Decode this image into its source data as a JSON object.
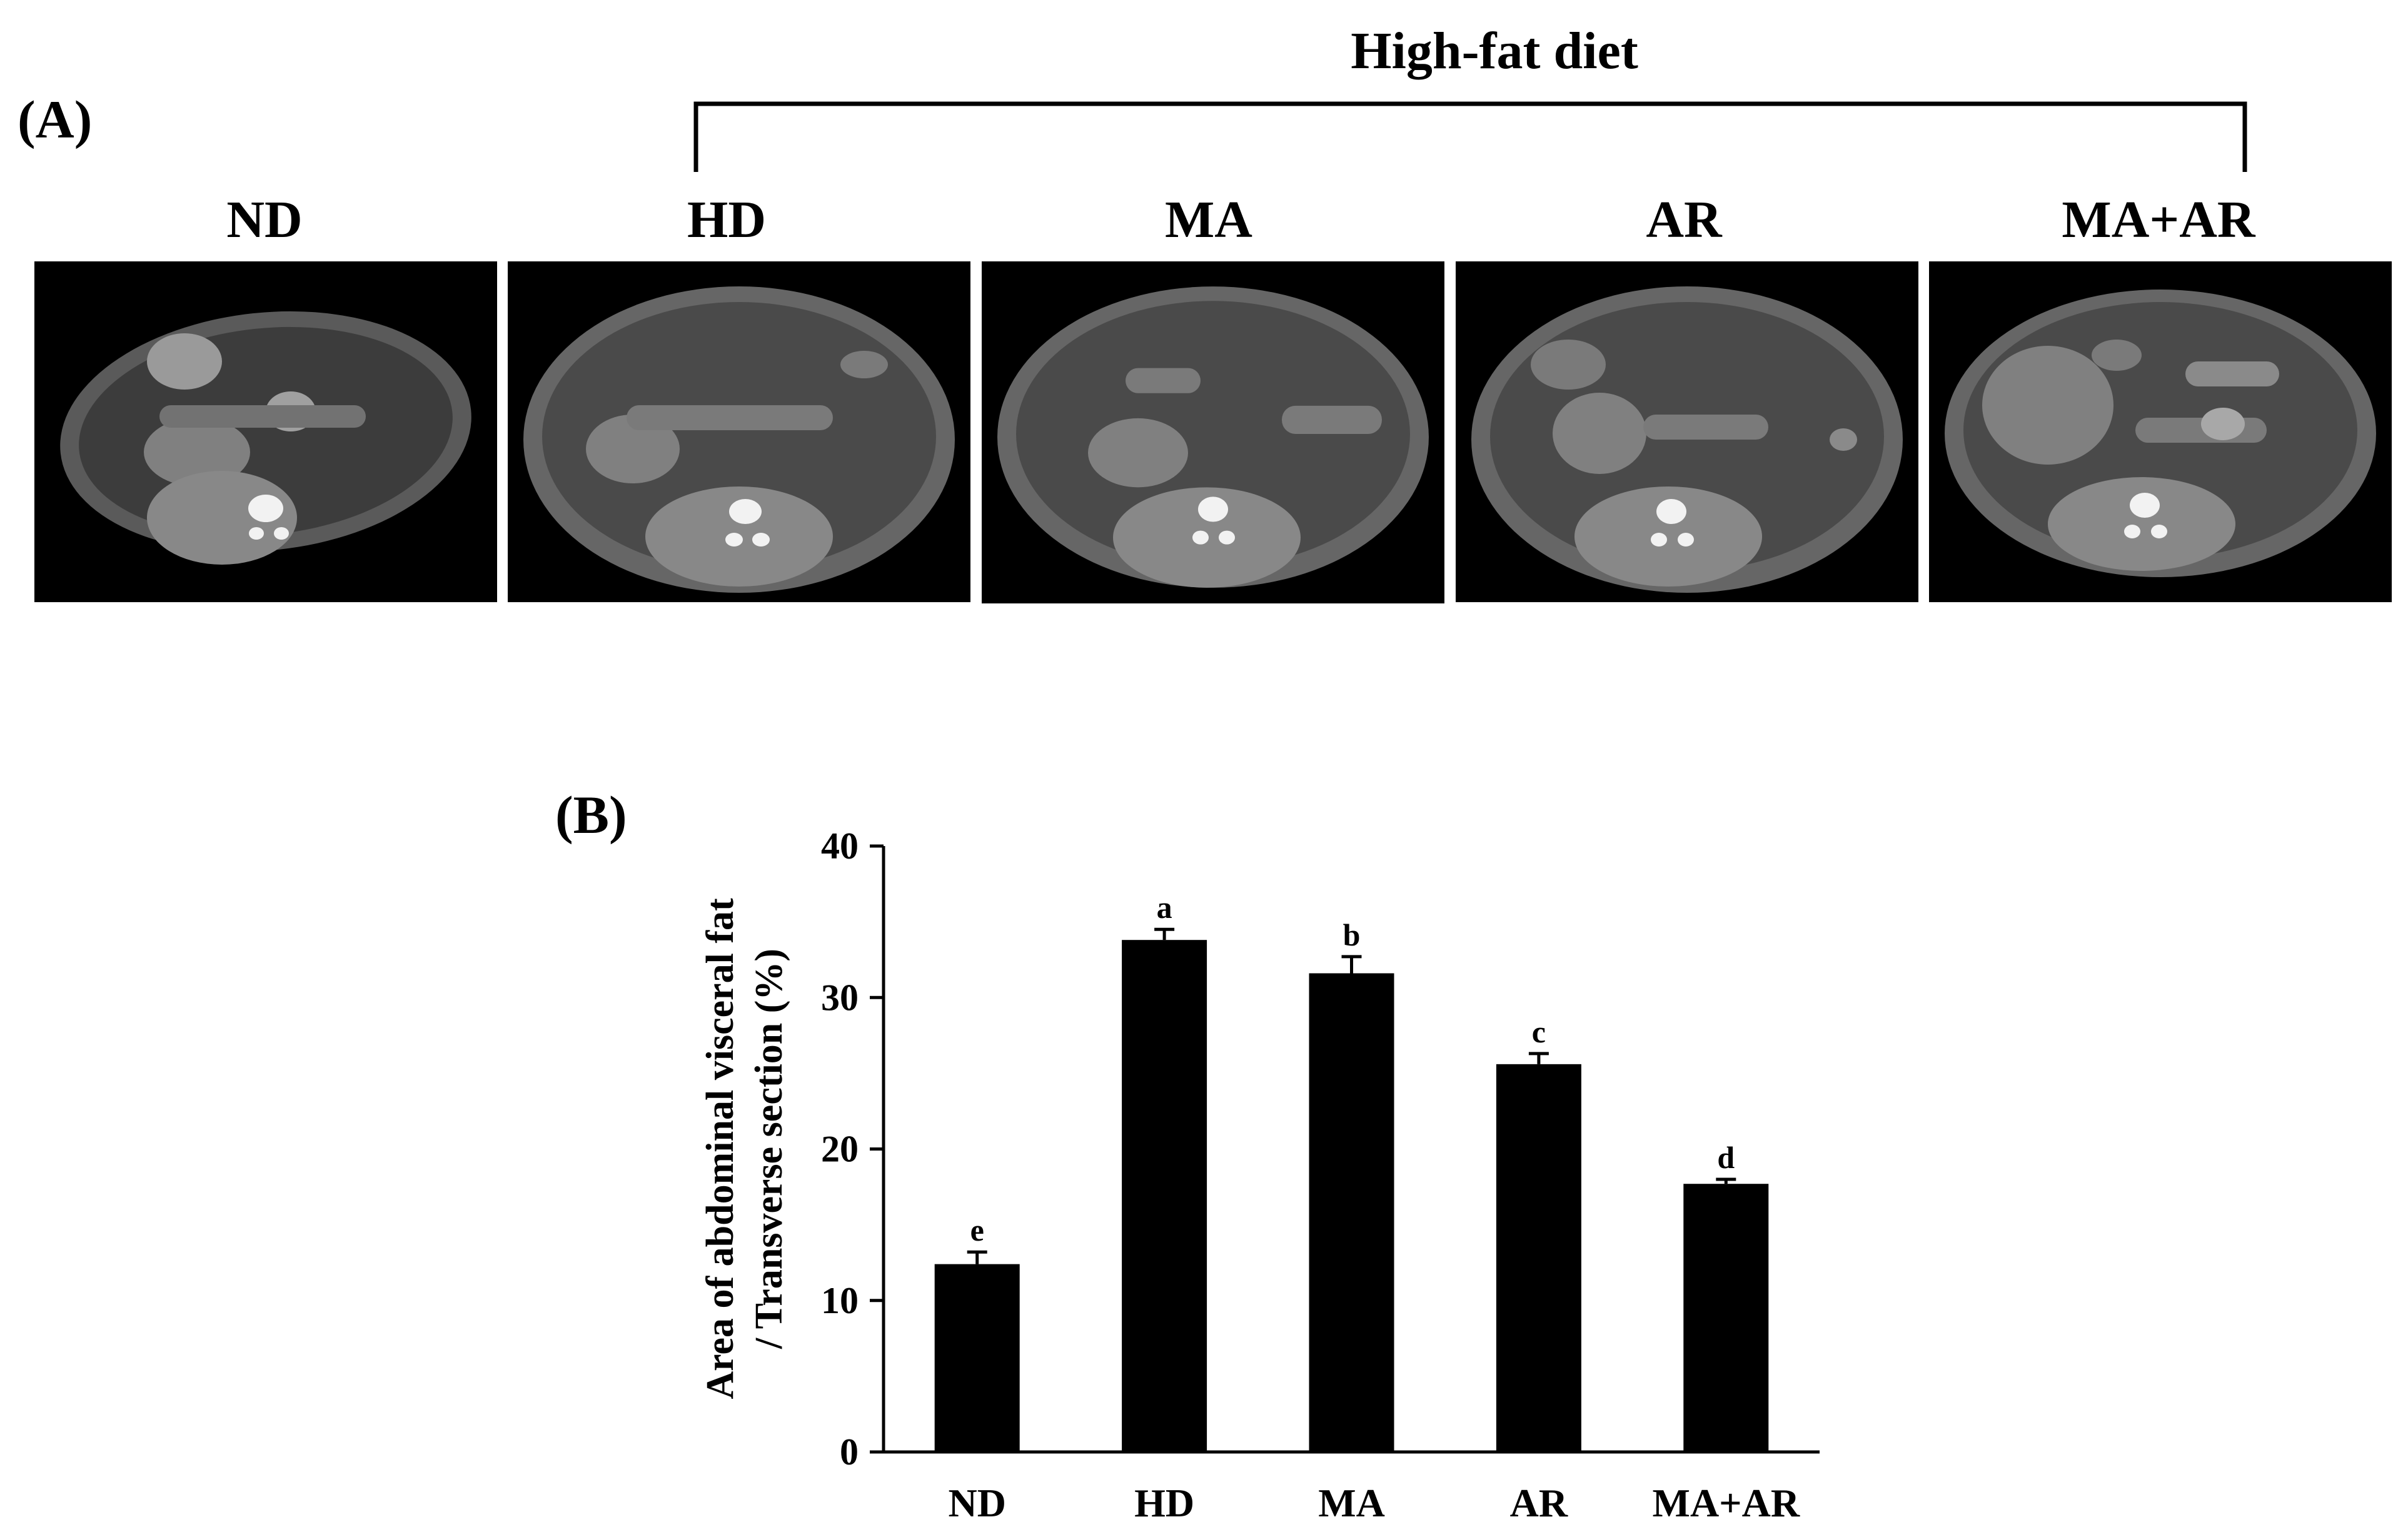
{
  "panel_a": {
    "label": "(A)",
    "bracket_title": "High-fat diet",
    "images": [
      {
        "label": "ND"
      },
      {
        "label": "HD"
      },
      {
        "label": "MA"
      },
      {
        "label": "AR"
      },
      {
        "label": "MA+AR"
      }
    ]
  },
  "panel_b": {
    "label": "(B)"
  },
  "colors": {
    "bar": "#000000",
    "ct_background": "#000000",
    "ct_body": "#5a5a5a",
    "ct_fat": "#3a3a3a",
    "ct_organ": "#8a8a8a",
    "ct_bone": "#f4f4f4"
  },
  "chart_data": {
    "type": "bar",
    "title": "",
    "categories": [
      "ND",
      "HD",
      "MA",
      "AR",
      "MA+AR"
    ],
    "values": [
      12.4,
      33.8,
      31.6,
      25.6,
      17.7
    ],
    "errors": [
      0.8,
      0.7,
      1.1,
      0.7,
      0.3
    ],
    "annotations": [
      "e",
      "a",
      "b",
      "c",
      "d"
    ],
    "xlabel": "",
    "ylabel_lines": [
      "Area of abdominal visceral fat",
      "/ Transverse section (%)"
    ],
    "ylim": [
      0,
      40
    ],
    "yticks": [
      0,
      10,
      20,
      30,
      40
    ],
    "grid": false,
    "legend": "none"
  }
}
